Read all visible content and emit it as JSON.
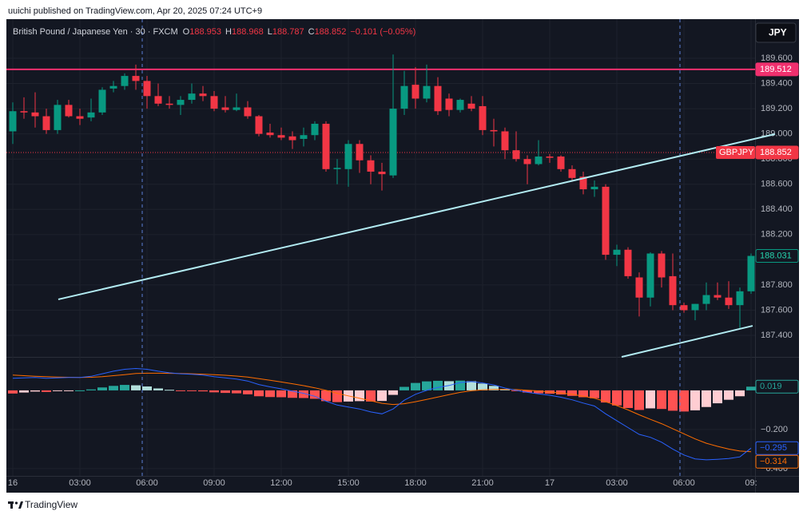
{
  "header": {
    "text": "uuichi published on TradingView.com, Apr 20, 2025 07:24 UTC+9"
  },
  "legend": {
    "symbol": "British Pound / Japanese Yen · 30 · FXCM",
    "fields": [
      {
        "key": "O",
        "value": "188.953"
      },
      {
        "key": "H",
        "value": "188.968"
      },
      {
        "key": "L",
        "value": "188.787"
      },
      {
        "key": "C",
        "value": "188.852"
      }
    ],
    "change": "−0.101 (−0.05%)"
  },
  "currency_button": "JPY",
  "footer": {
    "brand": "TradingView"
  },
  "chart_data": [
    {
      "type": "candlestick",
      "open": [
        189.02,
        189.18,
        189.17,
        189.14,
        189.03,
        189.23,
        189.14,
        189.13,
        189.17,
        189.36,
        189.38,
        189.46,
        189.42,
        189.3,
        189.24,
        189.23,
        189.27,
        189.32,
        189.3,
        189.21,
        189.19,
        189.21,
        189.14,
        189.01,
        188.99,
        188.98,
        188.96,
        188.99,
        189.08,
        188.72,
        188.72,
        188.92,
        188.79,
        188.7,
        188.67,
        189.2,
        189.39,
        189.28,
        189.38,
        189.28,
        189.19,
        189.24,
        189.22,
        189.03,
        189.02,
        188.87,
        188.8,
        188.76,
        188.82,
        188.82,
        188.72,
        188.66,
        188.56,
        188.58,
        188.04,
        188.08,
        187.86,
        187.7,
        188.05,
        187.87,
        187.64,
        187.6,
        187.65,
        187.72,
        187.7,
        187.64,
        187.75
      ],
      "high": [
        189.25,
        189.29,
        189.33,
        189.2,
        189.27,
        189.27,
        189.2,
        189.28,
        189.37,
        189.42,
        189.48,
        189.55,
        189.46,
        189.4,
        189.3,
        189.3,
        189.4,
        189.38,
        189.34,
        189.3,
        189.32,
        189.26,
        189.15,
        189.08,
        189.05,
        189.02,
        189.05,
        189.1,
        189.1,
        188.8,
        188.95,
        188.95,
        188.83,
        188.77,
        189.63,
        189.5,
        189.53,
        189.55,
        189.45,
        189.32,
        189.28,
        189.3,
        189.3,
        189.12,
        189.05,
        189.02,
        188.83,
        188.95,
        188.84,
        188.83,
        188.75,
        188.7,
        188.63,
        188.6,
        188.12,
        188.1,
        187.9,
        188.06,
        188.07,
        188.05,
        187.66,
        187.65,
        187.82,
        187.82,
        187.83,
        187.78,
        188.05
      ],
      "low": [
        188.92,
        189.12,
        189.05,
        189.0,
        189.0,
        189.13,
        189.07,
        189.1,
        189.15,
        189.33,
        189.35,
        189.35,
        189.2,
        189.22,
        189.2,
        189.15,
        189.24,
        189.26,
        189.18,
        189.17,
        189.18,
        189.12,
        188.98,
        188.97,
        188.95,
        188.88,
        188.9,
        188.95,
        188.7,
        188.6,
        188.58,
        188.69,
        188.6,
        188.55,
        188.65,
        189.15,
        189.2,
        189.25,
        189.15,
        189.14,
        189.17,
        189.18,
        188.99,
        188.9,
        188.8,
        188.78,
        188.6,
        188.75,
        188.77,
        188.7,
        188.62,
        188.52,
        188.5,
        188.0,
        187.95,
        187.85,
        187.55,
        187.63,
        187.78,
        187.6,
        187.58,
        187.52,
        187.6,
        187.68,
        187.61,
        187.45,
        187.73
      ],
      "close": [
        189.18,
        189.17,
        189.14,
        189.03,
        189.23,
        189.14,
        189.12,
        189.17,
        189.35,
        189.38,
        189.46,
        189.42,
        189.3,
        189.24,
        189.23,
        189.27,
        189.32,
        189.3,
        189.2,
        189.19,
        189.21,
        189.14,
        189.0,
        188.99,
        188.97,
        188.95,
        188.99,
        189.08,
        188.72,
        188.73,
        188.92,
        188.79,
        188.7,
        188.68,
        189.2,
        189.38,
        189.28,
        189.38,
        189.18,
        189.19,
        189.27,
        189.2,
        189.03,
        189.02,
        188.87,
        188.8,
        188.76,
        188.82,
        188.81,
        188.72,
        188.65,
        188.56,
        188.58,
        188.04,
        188.08,
        187.87,
        187.7,
        188.05,
        187.86,
        187.64,
        187.6,
        187.65,
        187.72,
        187.7,
        187.64,
        187.75,
        188.031
      ],
      "up_color": "#089981",
      "down_color": "#f23645",
      "xlim": [
        -0.571,
        66.357
      ],
      "xticks": [
        {
          "value": 0,
          "label": "16"
        },
        {
          "value": 6,
          "label": "03:00"
        },
        {
          "value": 12,
          "label": "06:00"
        },
        {
          "value": 18,
          "label": "09:00"
        },
        {
          "value": 24,
          "label": "12:00"
        },
        {
          "value": 30,
          "label": "15:00"
        },
        {
          "value": 36,
          "label": "18:00"
        },
        {
          "value": 42,
          "label": "21:00"
        },
        {
          "value": 48,
          "label": "17"
        },
        {
          "value": 54,
          "label": "03:00"
        },
        {
          "value": 60,
          "label": "06:00"
        },
        {
          "value": 66,
          "label": "09:"
        }
      ],
      "ylim": [
        187.229,
        189.898
      ],
      "yticks": [
        {
          "value": 189.6,
          "label": "189.600"
        },
        {
          "value": 189.4,
          "label": "189.400"
        },
        {
          "value": 189.2,
          "label": "189.200"
        },
        {
          "value": 189.0,
          "label": "189.000"
        },
        {
          "value": 188.8,
          "label": "188.800"
        },
        {
          "value": 188.6,
          "label": "188.600"
        },
        {
          "value": 188.4,
          "label": "188.400"
        },
        {
          "value": 188.2,
          "label": "188.200"
        },
        {
          "value": 188.0,
          "label": "188.000"
        },
        {
          "value": 187.8,
          "label": "187.800"
        },
        {
          "value": 187.6,
          "label": "187.600"
        },
        {
          "value": 187.4,
          "label": "187.400"
        }
      ],
      "grid": true,
      "hline": {
        "value": 189.512,
        "color": "#f0306e"
      },
      "symbol_price": {
        "label": "GBPJPY",
        "value": 188.852,
        "color": "#f23645"
      },
      "trendline_color": "#b2ebf2",
      "trendlines": [
        {
          "x": [
            4.07,
            68.14
          ],
          "y": [
            187.686,
            188.998
          ]
        },
        {
          "x": [
            54.43,
            66.14
          ],
          "y": [
            187.229,
            187.476
          ]
        }
      ]
    },
    {
      "type": "macd",
      "histogram": {
        "values": [
          -0.016,
          -0.011,
          -0.006,
          -0.008,
          -0.004,
          -0.001,
          0.0,
          0.005,
          0.015,
          0.023,
          0.028,
          0.026,
          0.02,
          0.01,
          0.003,
          -0.001,
          -0.003,
          -0.005,
          -0.01,
          -0.013,
          -0.015,
          -0.02,
          -0.03,
          -0.034,
          -0.035,
          -0.038,
          -0.039,
          -0.043,
          -0.055,
          -0.06,
          -0.057,
          -0.055,
          -0.057,
          -0.054,
          -0.023,
          0.018,
          0.038,
          0.046,
          0.049,
          0.047,
          0.05,
          0.047,
          0.035,
          0.023,
          0.007,
          -0.004,
          -0.011,
          -0.015,
          -0.017,
          -0.021,
          -0.028,
          -0.035,
          -0.04,
          -0.062,
          -0.077,
          -0.09,
          -0.1,
          -0.092,
          -0.095,
          -0.104,
          -0.108,
          -0.102,
          -0.085,
          -0.066,
          -0.048,
          -0.03,
          0.019
        ],
        "colors": {
          "up_rising": "#26a69a",
          "up_falling": "#b2dfdb",
          "down_falling": "#ff5252",
          "down_rising": "#ffcdd2"
        },
        "label_color": "#26a69a"
      },
      "macd": {
        "values": [
          0.062,
          0.064,
          0.066,
          0.062,
          0.064,
          0.066,
          0.066,
          0.072,
          0.085,
          0.098,
          0.108,
          0.112,
          0.108,
          0.098,
          0.09,
          0.085,
          0.082,
          0.078,
          0.07,
          0.064,
          0.058,
          0.048,
          0.03,
          0.018,
          0.008,
          -0.004,
          -0.015,
          -0.03,
          -0.055,
          -0.075,
          -0.085,
          -0.095,
          -0.11,
          -0.12,
          -0.095,
          -0.05,
          -0.02,
          0.0,
          0.015,
          0.025,
          0.04,
          0.045,
          0.038,
          0.028,
          0.012,
          0.0,
          -0.01,
          -0.018,
          -0.025,
          -0.035,
          -0.048,
          -0.065,
          -0.08,
          -0.12,
          -0.155,
          -0.19,
          -0.225,
          -0.24,
          -0.265,
          -0.3,
          -0.33,
          -0.35,
          -0.355,
          -0.352,
          -0.348,
          -0.34,
          -0.295
        ],
        "color": "#2962ff",
        "last_value_label": "−0.295"
      },
      "signal": {
        "values": [
          0.078,
          0.075,
          0.072,
          0.07,
          0.068,
          0.067,
          0.066,
          0.067,
          0.07,
          0.075,
          0.08,
          0.086,
          0.088,
          0.088,
          0.087,
          0.086,
          0.085,
          0.083,
          0.08,
          0.077,
          0.073,
          0.068,
          0.06,
          0.052,
          0.043,
          0.034,
          0.024,
          0.013,
          0.0,
          -0.015,
          -0.028,
          -0.04,
          -0.053,
          -0.066,
          -0.072,
          -0.068,
          -0.058,
          -0.046,
          -0.034,
          -0.022,
          -0.01,
          -0.002,
          0.003,
          0.005,
          0.005,
          0.004,
          0.001,
          -0.003,
          -0.008,
          -0.014,
          -0.02,
          -0.03,
          -0.04,
          -0.058,
          -0.078,
          -0.1,
          -0.125,
          -0.148,
          -0.17,
          -0.196,
          -0.222,
          -0.248,
          -0.27,
          -0.286,
          -0.3,
          -0.31,
          -0.314
        ],
        "color": "#ff6d00",
        "last_value_label": "−0.314"
      },
      "ylim": [
        -0.433,
        0.167
      ],
      "yticks": [
        {
          "value": -0.2,
          "label": "−0.200"
        },
        {
          "value": -0.4,
          "label": "−0.400"
        }
      ],
      "grid": true
    }
  ]
}
